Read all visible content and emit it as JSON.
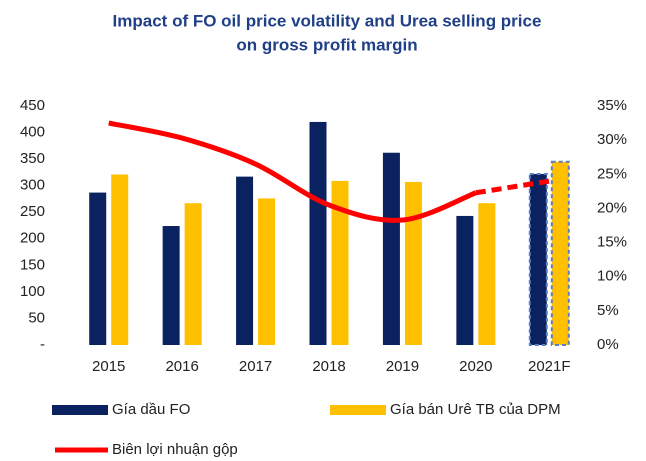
{
  "chart_data": {
    "type": "bar_line",
    "title": [
      "Impact of FO oil price volatility and Urea selling price",
      "on gross profit margin"
    ],
    "categories": [
      "2015",
      "2016",
      "2017",
      "2018",
      "2019",
      "2020",
      "2021F"
    ],
    "series": [
      {
        "name": "Gía dầu FO",
        "type": "bar",
        "color": "#0b2260",
        "values": [
          287,
          224,
          317,
          420,
          362,
          243,
          322
        ]
      },
      {
        "name": "Gía bán Urê TB của DPM",
        "type": "bar",
        "color": "#ffc000",
        "values": [
          321,
          267,
          276,
          309,
          307,
          267,
          345
        ]
      },
      {
        "name": "Biên lợi nhuận gộp",
        "type": "line",
        "axis": "y2",
        "color": "#ff0000",
        "values": [
          32.5,
          30.3,
          26.5,
          20.5,
          18.3,
          22.3,
          24
        ]
      }
    ],
    "ylim": [
      0,
      450
    ],
    "yticks": [
      {
        "value": 0,
        "label": "-"
      },
      50,
      100,
      150,
      200,
      250,
      300,
      350,
      400,
      450
    ],
    "y2lim": [
      0,
      35
    ],
    "y2ticks": [
      {
        "value": 0,
        "label": "0%"
      },
      {
        "value": 5,
        "label": "5%"
      },
      {
        "value": 10,
        "label": "10%"
      },
      {
        "value": 15,
        "label": "15%"
      },
      {
        "value": 20,
        "label": "20%"
      },
      {
        "value": 25,
        "label": "25%"
      },
      {
        "value": 30,
        "label": "30%"
      },
      {
        "value": 35,
        "label": "35%"
      }
    ],
    "grid": false
  }
}
